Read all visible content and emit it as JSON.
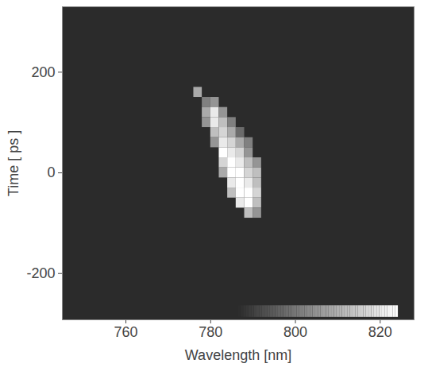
{
  "chart_data": {
    "type": "heatmap",
    "x_label": "Wavelength [nm]",
    "y_label": "Time [ ps ]",
    "xlim": [
      745,
      828
    ],
    "xticks": [
      760,
      780,
      800,
      820
    ],
    "ylim": [
      -292,
      330
    ],
    "yticks": [
      -200,
      0,
      200
    ],
    "cell_width": 2,
    "cell_height": 20,
    "color_range": [
      0,
      1
    ],
    "cells": [
      [
        777,
        160,
        0.6
      ],
      [
        779,
        140,
        0.4
      ],
      [
        781,
        140,
        0.5
      ],
      [
        779,
        120,
        0.6
      ],
      [
        781,
        120,
        0.9
      ],
      [
        783,
        120,
        0.5
      ],
      [
        779,
        100,
        0.5
      ],
      [
        781,
        100,
        0.9
      ],
      [
        783,
        100,
        0.7
      ],
      [
        785,
        100,
        0.4
      ],
      [
        781,
        80,
        0.7
      ],
      [
        783,
        80,
        0.8
      ],
      [
        785,
        80,
        0.6
      ],
      [
        787,
        80,
        0.3
      ],
      [
        781,
        60,
        0.5
      ],
      [
        783,
        60,
        0.9
      ],
      [
        785,
        60,
        0.8
      ],
      [
        787,
        60,
        0.6
      ],
      [
        789,
        60,
        0.4
      ],
      [
        783,
        40,
        1.0
      ],
      [
        785,
        40,
        0.9
      ],
      [
        787,
        40,
        0.8
      ],
      [
        789,
        40,
        0.5
      ],
      [
        783,
        20,
        0.8
      ],
      [
        785,
        20,
        1.0
      ],
      [
        787,
        20,
        0.9
      ],
      [
        789,
        20,
        0.7
      ],
      [
        791,
        20,
        0.5
      ],
      [
        783,
        0,
        0.6
      ],
      [
        785,
        0,
        1.0
      ],
      [
        787,
        0,
        1.0
      ],
      [
        789,
        0,
        0.8
      ],
      [
        791,
        0,
        0.7
      ],
      [
        785,
        -20,
        0.9
      ],
      [
        787,
        -20,
        1.0
      ],
      [
        789,
        -20,
        0.9
      ],
      [
        791,
        -20,
        0.7
      ],
      [
        785,
        -40,
        0.7
      ],
      [
        787,
        -40,
        1.0
      ],
      [
        789,
        -40,
        1.0
      ],
      [
        791,
        -40,
        0.8
      ],
      [
        787,
        -60,
        0.9
      ],
      [
        789,
        -60,
        1.0
      ],
      [
        791,
        -60,
        0.7
      ],
      [
        789,
        -80,
        0.7
      ],
      [
        791,
        -80,
        0.5
      ]
    ]
  }
}
